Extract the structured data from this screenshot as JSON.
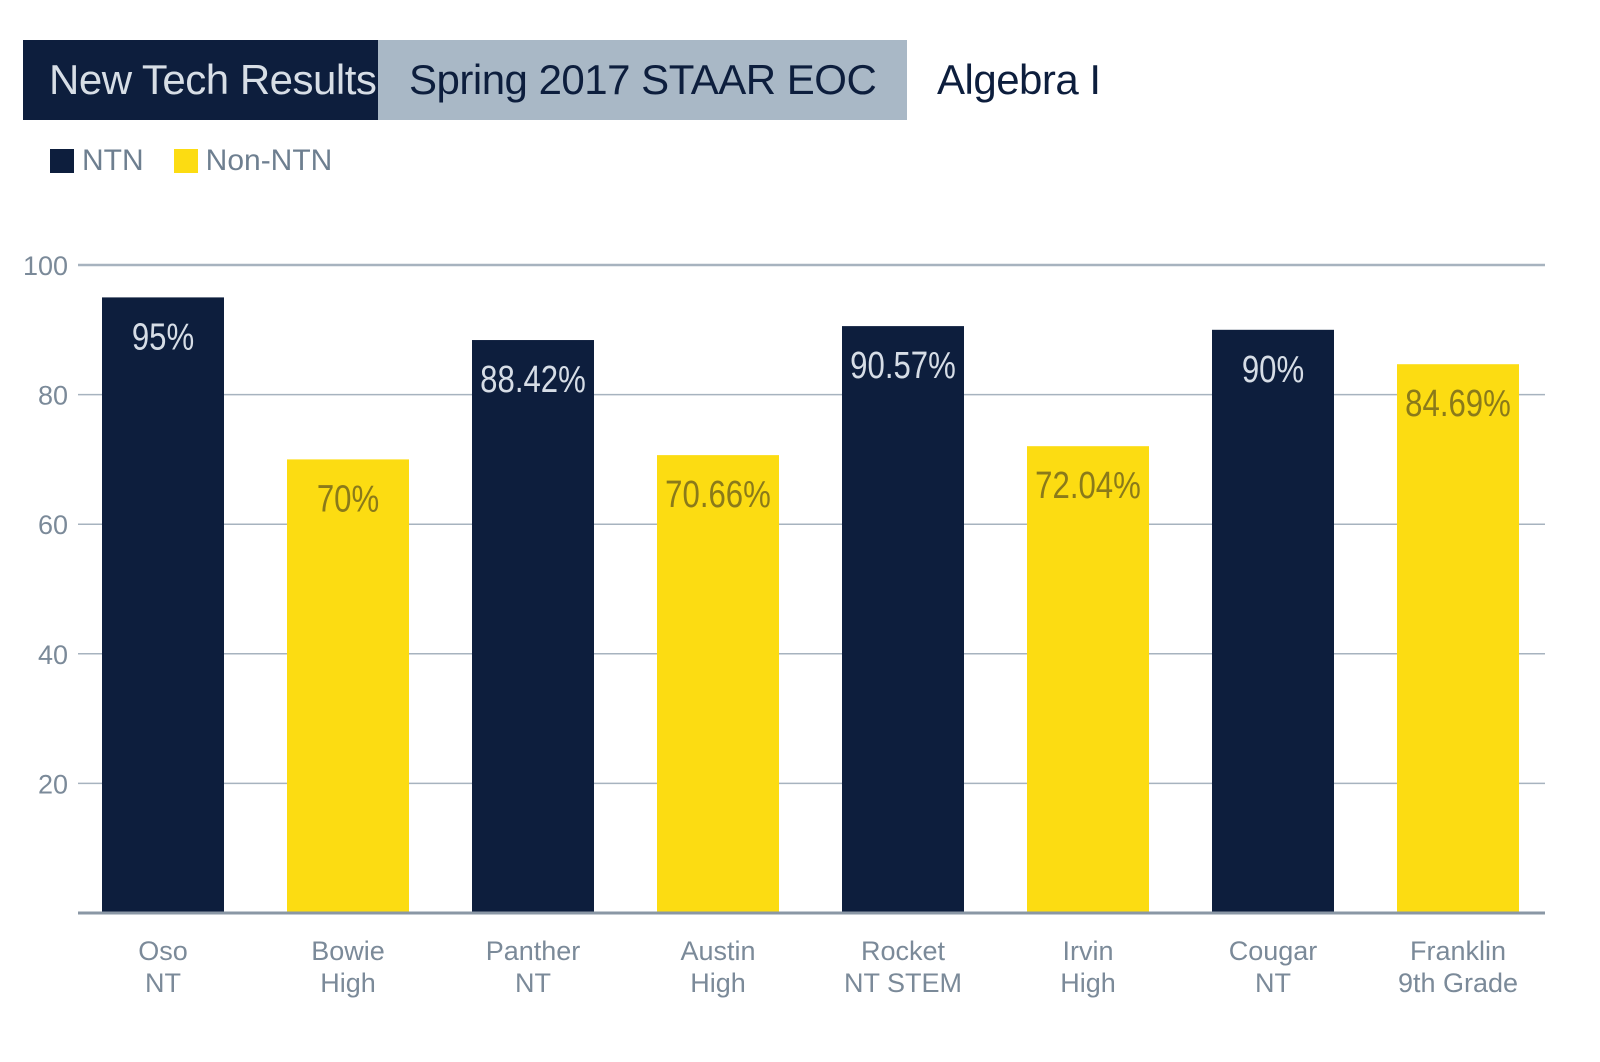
{
  "header": {
    "left_tag": "New Tech Results",
    "middle_tag": "Spring 2017 STAAR EOC",
    "subject": "Algebra I"
  },
  "colors": {
    "ntn": "#0d1e3d",
    "non_ntn": "#fcdc12",
    "header_light": "#a9b8c6",
    "gridline": "#a7b3bf",
    "axis_text": "#7b8a99"
  },
  "legend": [
    {
      "label": "NTN",
      "color": "#0d1e3d"
    },
    {
      "label": "Non-NTN",
      "color": "#fcdc12"
    }
  ],
  "chart_data": {
    "type": "bar",
    "categories": [
      [
        "Oso",
        "NT"
      ],
      [
        "Bowie",
        "High"
      ],
      [
        "Panther",
        "NT"
      ],
      [
        "Austin",
        "High"
      ],
      [
        "Rocket",
        "NT STEM"
      ],
      [
        "Irvin",
        "High"
      ],
      [
        "Cougar",
        "NT"
      ],
      [
        "Franklin",
        "9th Grade"
      ]
    ],
    "values": [
      95,
      70,
      88.42,
      70.66,
      90.57,
      72.04,
      90,
      84.69
    ],
    "data_labels": [
      "95%",
      "70%",
      "88.42%",
      "70.66%",
      "90.57%",
      "72.04%",
      "90%",
      "84.69%"
    ],
    "groups": [
      "NTN",
      "Non-NTN",
      "NTN",
      "Non-NTN",
      "NTN",
      "Non-NTN",
      "NTN",
      "Non-NTN"
    ],
    "yticks": [
      20,
      40,
      60,
      80,
      100
    ],
    "ylim": [
      0,
      100
    ],
    "grid": true,
    "legend_position": "top-left"
  }
}
